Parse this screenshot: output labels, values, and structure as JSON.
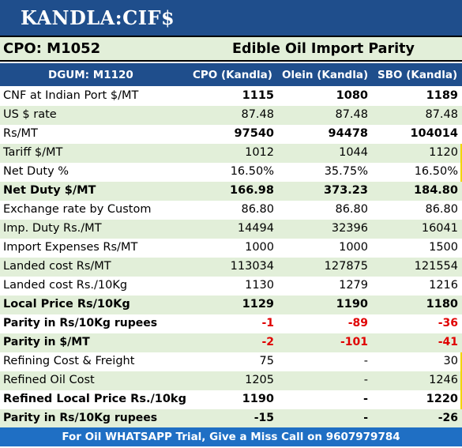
{
  "title": "KANDLA:CIF$",
  "subtitle_left": "CPO: M1052",
  "subtitle_right": "Edible Oil Import Parity",
  "header": {
    "col0": "DGUM: M1120",
    "col1": "CPO (Kandla)",
    "col2": "Olein (Kandla)",
    "col3": "SBO (Kandla)"
  },
  "rows": [
    {
      "label": "CNF at Indian Port $/MT",
      "v1": "1115",
      "v2": "1080",
      "v3": "1189"
    },
    {
      "label": "US $ rate",
      "v1": "87.48",
      "v2": "87.48",
      "v3": "87.48"
    },
    {
      "label": "Rs/MT",
      "v1": "97540",
      "v2": "94478",
      "v3": "104014"
    },
    {
      "label": "Tariff $/MT",
      "v1": "1012",
      "v2": "1044",
      "v3": "1120"
    },
    {
      "label": "Net Duty %",
      "v1": "16.50%",
      "v2": "35.75%",
      "v3": "16.50%"
    },
    {
      "label": "Net Duty $/MT",
      "v1": "166.98",
      "v2": "373.23",
      "v3": "184.80"
    },
    {
      "label": "Exchange rate by Custom",
      "v1": "86.80",
      "v2": "86.80",
      "v3": "86.80"
    },
    {
      "label": "Imp. Duty Rs./MT",
      "v1": "14494",
      "v2": "32396",
      "v3": "16041"
    },
    {
      "label": "Import Expenses Rs/MT",
      "v1": "1000",
      "v2": "1000",
      "v3": "1500"
    },
    {
      "label": "Landed cost Rs/MT",
      "v1": "113034",
      "v2": "127875",
      "v3": "121554"
    },
    {
      "label": "Landed cost Rs./10Kg",
      "v1": "1130",
      "v2": "1279",
      "v3": "1216"
    },
    {
      "label": "Local Price Rs/10Kg",
      "v1": "1129",
      "v2": "1190",
      "v3": "1180"
    },
    {
      "label": "Parity in Rs/10Kg rupees",
      "v1": "-1",
      "v2": "-89",
      "v3": "-36"
    },
    {
      "label": "Parity in $/MT",
      "v1": "-2",
      "v2": "-101",
      "v3": "-41"
    },
    {
      "label": "Refining Cost & Freight",
      "v1": "75",
      "v2": "-",
      "v3": "30"
    },
    {
      "label": "Refined Oil Cost",
      "v1": "1205",
      "v2": "-",
      "v3": "1246"
    },
    {
      "label": "Refined Local Price Rs./10kg",
      "v1": "1190",
      "v2": "-",
      "v3": "1220"
    },
    {
      "label": "Parity in Rs/10Kg rupees",
      "v1": "-15",
      "v2": "-",
      "v3": "-26"
    }
  ],
  "footer": "For Oil WHATSAPP Trial, Give a Miss Call on 9607979784",
  "colors": {
    "header_blue": "#1f4e8c",
    "footer_blue": "#1f6fc4",
    "row_green": "#e2efd9",
    "negative_red": "#e00000"
  }
}
